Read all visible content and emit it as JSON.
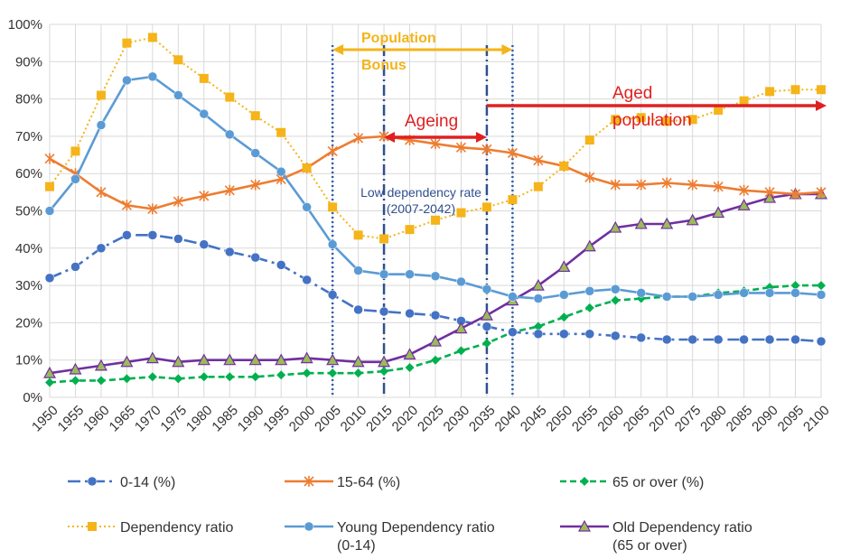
{
  "chart_data": {
    "type": "line",
    "title": "",
    "xlabel": "",
    "ylabel": "",
    "ylim": [
      0,
      100
    ],
    "y_ticks": [
      "0%",
      "10%",
      "20%",
      "30%",
      "40%",
      "50%",
      "60%",
      "70%",
      "80%",
      "90%",
      "100%"
    ],
    "x": [
      1950,
      1955,
      1960,
      1965,
      1970,
      1975,
      1980,
      1985,
      1990,
      1995,
      2000,
      2005,
      2010,
      2015,
      2020,
      2025,
      2030,
      2035,
      2040,
      2045,
      2050,
      2055,
      2060,
      2065,
      2070,
      2075,
      2080,
      2085,
      2090,
      2095,
      2100
    ],
    "x_labels": [
      "1950",
      "1955",
      "1960",
      "1965",
      "1970",
      "1975",
      "1980",
      "1985",
      "1990",
      "1995",
      "2000",
      "2005",
      "2010",
      "2015",
      "2020",
      "2025",
      "2030",
      "2035",
      "2040",
      "2045",
      "2050",
      "2055",
      "2060",
      "2065",
      "2070",
      "2075",
      "2080",
      "2085",
      "2090",
      "2095",
      "2100"
    ],
    "grid": true,
    "legend_position": "bottom",
    "series": [
      {
        "name": "0-14 (%)",
        "color": "#4472c4",
        "style": "dash-dot",
        "marker": "circle",
        "values": [
          32,
          35,
          40,
          43.5,
          43.5,
          42.5,
          41,
          39,
          37.5,
          35.5,
          31.5,
          27.5,
          23.5,
          23,
          22.5,
          22,
          20.5,
          19,
          17.5,
          17,
          17,
          17,
          16.5,
          16,
          15.5,
          15.5,
          15.5,
          15.5,
          15.5,
          15.5,
          15
        ]
      },
      {
        "name": "15-64 (%)",
        "color": "#ed7d31",
        "style": "solid",
        "marker": "x",
        "values": [
          64,
          60,
          55,
          51.5,
          50.5,
          52.5,
          54,
          55.5,
          57,
          58.5,
          61.5,
          66,
          69.5,
          70,
          69,
          68,
          67,
          66.5,
          65.5,
          63.5,
          62,
          59,
          57,
          57,
          57.5,
          57,
          56.5,
          55.5,
          55,
          54.5,
          55
        ]
      },
      {
        "name": "65 or over (%)",
        "color": "#00b050",
        "style": "dash",
        "marker": "diamond",
        "values": [
          4,
          4.5,
          4.5,
          5,
          5.5,
          5,
          5.5,
          5.5,
          5.5,
          6,
          6.5,
          6.5,
          6.5,
          7,
          8,
          10,
          12.5,
          14.5,
          17.5,
          19,
          21.5,
          24,
          26,
          26.5,
          27,
          27,
          28,
          28.5,
          29.5,
          30,
          30
        ]
      },
      {
        "name": "Dependency ratio",
        "color": "#f4b41a",
        "style": "dot",
        "marker": "square",
        "values": [
          56.5,
          66,
          81,
          95,
          96.5,
          90.5,
          85.5,
          80.5,
          75.5,
          71,
          61.5,
          51,
          43.5,
          42.5,
          45,
          47.5,
          49.5,
          51,
          53,
          56.5,
          62,
          69,
          74.5,
          75,
          74,
          74.5,
          77,
          79.5,
          82,
          82.5,
          82.5
        ]
      },
      {
        "name": "Young Dependency ratio\n(0-14)",
        "color": "#5b9bd5",
        "style": "solid",
        "marker": "circle",
        "values": [
          50,
          58.5,
          73,
          85,
          86,
          81,
          76,
          70.5,
          65.5,
          60.5,
          51,
          41,
          34,
          33,
          33,
          32.5,
          31,
          29,
          27,
          26.5,
          27.5,
          28.5,
          29,
          28,
          27,
          27,
          27.5,
          28,
          28,
          28,
          27.5
        ]
      },
      {
        "name": "Old Dependency ratio\n(65 or over)",
        "color": "#7030a0",
        "style": "solid",
        "marker": "triangle",
        "values": [
          6.5,
          7.5,
          8.5,
          9.5,
          10.5,
          9.5,
          10,
          10,
          10,
          10,
          10.5,
          10,
          9.5,
          9.5,
          11.5,
          15,
          18.5,
          22,
          26,
          30,
          35,
          40.5,
          45.5,
          46.5,
          46.5,
          47.5,
          49.5,
          51.5,
          53.5,
          54.5,
          54.5
        ]
      }
    ],
    "annotations": {
      "population_bonus": {
        "text": "Population\nBonus",
        "from": 2005,
        "to": 2040,
        "color": "#f4b41a"
      },
      "ageing": {
        "text": "Ageing",
        "from": 2015,
        "to": 2035,
        "color": "#e02020"
      },
      "aged_population": {
        "text": "Aged\npopulation",
        "from": 2035,
        "to": 2100,
        "color": "#e02020"
      },
      "low_dependency": {
        "text": "Low dependency rate\n(2007-2042)",
        "color": "#2f4f8f"
      },
      "vertical_markers": [
        {
          "x": 2005,
          "color": "#2f5fb0",
          "style": "dot"
        },
        {
          "x": 2015,
          "color": "#2f4f8f",
          "style": "dashdot"
        },
        {
          "x": 2035,
          "color": "#2f4f8f",
          "style": "dashdot"
        },
        {
          "x": 2040,
          "color": "#2f5fb0",
          "style": "dot"
        }
      ]
    }
  }
}
